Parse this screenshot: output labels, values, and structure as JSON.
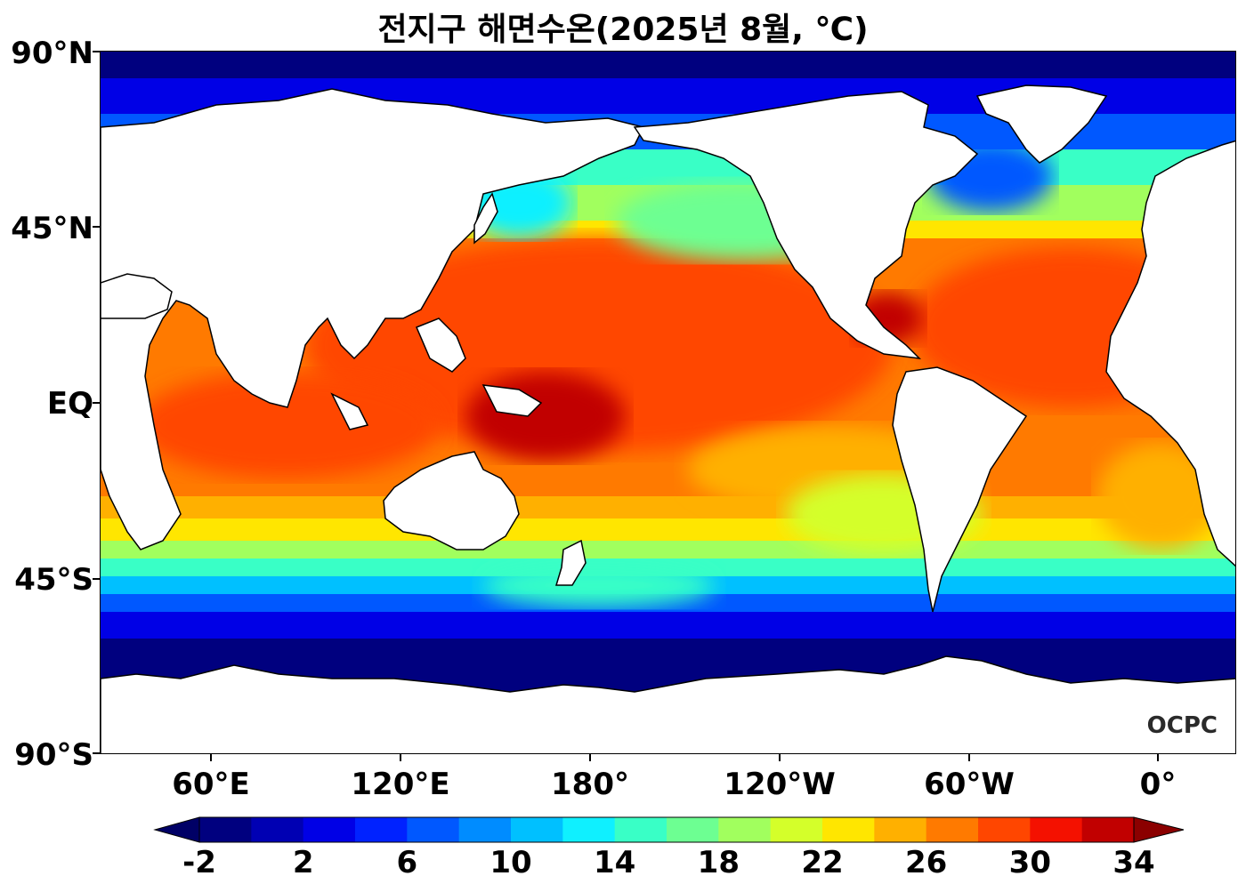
{
  "title": "전지구 해면수온(2025년 8월, ℃)",
  "watermark": "OCPC",
  "lat_labels": [
    "90°N",
    "45°N",
    "EQ",
    "45°S",
    "90°S"
  ],
  "lon_labels": [
    "60°E",
    "120°E",
    "180°",
    "120°W",
    "60°W",
    "0°"
  ],
  "colorbar": {
    "tick_labels": [
      "-2",
      "2",
      "6",
      "10",
      "14",
      "18",
      "22",
      "26",
      "30",
      "34"
    ],
    "levels": [
      -2,
      0,
      2,
      4,
      6,
      8,
      10,
      12,
      14,
      16,
      18,
      20,
      22,
      24,
      26,
      28,
      30,
      32,
      34
    ],
    "colors": [
      "#00007f",
      "#0000b3",
      "#0000e6",
      "#0022ff",
      "#0058ff",
      "#008cff",
      "#00c0ff",
      "#0ff0ff",
      "#39ffc6",
      "#6dff92",
      "#a1ff5e",
      "#d4ff2a",
      "#ffe600",
      "#ffb000",
      "#ff7a00",
      "#ff4600",
      "#f41100",
      "#c10000"
    ],
    "under_color": "#000066",
    "over_color": "#8b0000"
  },
  "land_color": "#ffffff"
}
